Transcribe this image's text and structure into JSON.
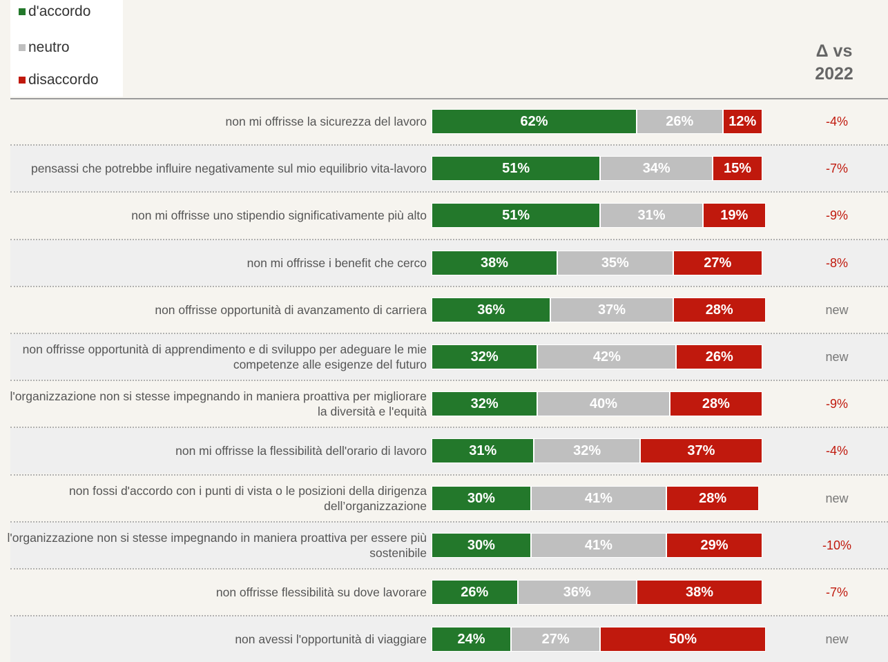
{
  "chart_data": {
    "type": "stacked_bar",
    "orientation": "horizontal",
    "categories": [
      "non mi offrisse la sicurezza del lavoro",
      "pensassi che potrebbe influire negativamente sul mio equilibrio vita-lavoro",
      "non mi offrisse uno stipendio significativamente più alto",
      "non mi offrisse i benefit che cerco",
      "non offrisse opportunità di avanzamento di carriera",
      "non offrisse opportunità di apprendimento e di sviluppo per adeguare le mie competenze alle esigenze del futuro",
      "l'organizzazione non si stesse impegnando in maniera proattiva per migliorare la diversità e l'equità",
      "non mi offrisse la flessibilità dell'orario di lavoro",
      "non fossi d'accordo con i punti di vista o le posizioni della dirigenza dell’organizzazione",
      "l'organizzazione non si stesse impegnando in maniera proattiva per essere più sostenibile",
      "non offrisse flessibilità su dove lavorare",
      "non avessi l'opportunità di viaggiare"
    ],
    "series": [
      {
        "name": "d'accordo",
        "color": "#23782b",
        "values": [
          62,
          51,
          51,
          38,
          36,
          32,
          32,
          31,
          30,
          30,
          26,
          24
        ],
        "value_labels": [
          "62%",
          "51%",
          "51%",
          "38%",
          "36%",
          "32%",
          "32%",
          "31%",
          "30%",
          "30%",
          "26%",
          "24%"
        ]
      },
      {
        "name": "neutro",
        "color": "#bfbfbf",
        "values": [
          26,
          34,
          31,
          35,
          37,
          42,
          40,
          32,
          41,
          41,
          36,
          27
        ],
        "value_labels": [
          "26%",
          "34%",
          "31%",
          "35%",
          "37%",
          "42%",
          "40%",
          "32%",
          "41%",
          "41%",
          "36%",
          "27%"
        ]
      },
      {
        "name": "disaccordo",
        "color": "#c0190d",
        "values": [
          12,
          15,
          19,
          27,
          28,
          26,
          28,
          37,
          28,
          29,
          38,
          50
        ],
        "value_labels": [
          "12%",
          "15%",
          "19%",
          "27%",
          "28%",
          "26%",
          "28%",
          "37%",
          "28%",
          "29%",
          "38%",
          "50%"
        ]
      }
    ],
    "delta": {
      "title": "Δ vs 2022",
      "values": [
        -4,
        -7,
        -9,
        -8,
        null,
        null,
        -9,
        -4,
        null,
        -10,
        -7,
        null
      ],
      "value_labels": [
        "-4%",
        "-7%",
        "-9%",
        "-8%",
        "new",
        "new",
        "-9%",
        "-4%",
        "new",
        "-10%",
        "-7%",
        "new"
      ],
      "color": "#c0190d"
    },
    "legend": "top-left"
  }
}
